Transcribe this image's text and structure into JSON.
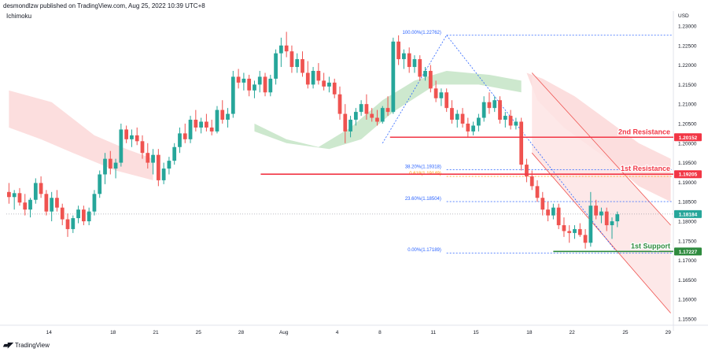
{
  "header": {
    "publisher": "desmondlzw published on TradingView.com, Aug 25, 2022 10:39 UTC+8"
  },
  "indicator": {
    "label": "Ichimoku"
  },
  "brand": {
    "label": "TradingView",
    "icon": "tradingview-logo-icon"
  },
  "colors": {
    "bull": "#26a69a",
    "bear": "#ef5350",
    "resistance": "#f23645",
    "support": "#2e8b3e",
    "fib": "#2962ff",
    "fib_gold": "#ff9800",
    "cloud_bull": "#c8e6c9",
    "cloud_bear": "#fcdada",
    "channel_fill": "#fde4e4"
  },
  "chart_data": {
    "type": "candlestick",
    "symbol_currency": "USD",
    "y_axis": {
      "ylim": [
        1.154,
        1.231
      ],
      "ticks": [
        "1.23000",
        "1.22500",
        "1.22000",
        "1.21500",
        "1.21000",
        "1.20500",
        "1.20000",
        "1.19500",
        "1.19000",
        "1.18500",
        "1.18000",
        "1.17500",
        "1.17000",
        "1.16500",
        "1.16000",
        "1.15500"
      ]
    },
    "x_axis": {
      "labels": [
        "14",
        "18",
        "21",
        "25",
        "28",
        "Aug",
        "4",
        "8",
        "11",
        "15",
        "18",
        "22",
        "25",
        "29"
      ]
    },
    "price_tags": [
      {
        "value": 1.20152,
        "label": "1.20152",
        "kind": "resistance"
      },
      {
        "value": 1.19205,
        "label": "1.19205",
        "kind": "resistance"
      },
      {
        "value": 1.18184,
        "label": "1.18184",
        "kind": "current"
      },
      {
        "value": 1.17227,
        "label": "1.17227",
        "kind": "support"
      }
    ],
    "levels": [
      {
        "name": "2nd Resistance",
        "value": 1.20152,
        "from_x": 28,
        "kind": "resistance"
      },
      {
        "name": "1st Resistance",
        "value": 1.19205,
        "from_x": 18.5,
        "kind": "resistance"
      },
      {
        "name": "1st Support",
        "value": 1.17227,
        "from_x": 40,
        "kind": "support"
      }
    ],
    "fibonacci": [
      {
        "label": "100.00%(1.22762)",
        "value": 1.22762
      },
      {
        "label": "38.20%(1.19318)",
        "value": 1.19318
      },
      {
        "label": "0.618(1.19149)",
        "value": 1.19149
      },
      {
        "label": "23.60%(1.18504)",
        "value": 1.18504
      },
      {
        "label": "0.00%(1.17189)",
        "value": 1.17189
      }
    ],
    "candles": [
      [
        1.1875,
        1.1898,
        1.1845,
        1.1862
      ],
      [
        1.1862,
        1.188,
        1.183,
        1.1872
      ],
      [
        1.1872,
        1.1885,
        1.184,
        1.1848
      ],
      [
        1.1848,
        1.187,
        1.1815,
        1.183
      ],
      [
        1.183,
        1.186,
        1.181,
        1.1855
      ],
      [
        1.1855,
        1.191,
        1.1845,
        1.1898
      ],
      [
        1.1898,
        1.1915,
        1.186,
        1.187
      ],
      [
        1.187,
        1.188,
        1.1815,
        1.1825
      ],
      [
        1.1825,
        1.1875,
        1.18,
        1.186
      ],
      [
        1.186,
        1.188,
        1.1825,
        1.1835
      ],
      [
        1.1835,
        1.1845,
        1.179,
        1.1805
      ],
      [
        1.1805,
        1.182,
        1.176,
        1.178
      ],
      [
        1.178,
        1.1815,
        1.177,
        1.1808
      ],
      [
        1.1808,
        1.184,
        1.1795,
        1.183
      ],
      [
        1.183,
        1.184,
        1.179,
        1.18
      ],
      [
        1.18,
        1.1835,
        1.179,
        1.1825
      ],
      [
        1.1825,
        1.188,
        1.1815,
        1.187
      ],
      [
        1.187,
        1.193,
        1.186,
        1.192
      ],
      [
        1.192,
        1.1975,
        1.1895,
        1.196
      ],
      [
        1.196,
        1.198,
        1.192,
        1.1935
      ],
      [
        1.1935,
        1.196,
        1.191,
        1.195
      ],
      [
        1.195,
        1.205,
        1.194,
        1.2035
      ],
      [
        1.2035,
        1.2045,
        1.2,
        1.201
      ],
      [
        1.201,
        1.2035,
        1.199,
        1.202
      ],
      [
        1.202,
        1.204,
        1.1995,
        1.2005
      ],
      [
        1.2005,
        1.202,
        1.196,
        1.1975
      ],
      [
        1.1975,
        1.2,
        1.1935,
        1.195
      ],
      [
        1.195,
        1.1985,
        1.192,
        1.197
      ],
      [
        1.197,
        1.1985,
        1.189,
        1.1905
      ],
      [
        1.1905,
        1.195,
        1.1895,
        1.1935
      ],
      [
        1.1935,
        1.1965,
        1.192,
        1.1955
      ],
      [
        1.1955,
        1.2,
        1.1945,
        1.199
      ],
      [
        1.199,
        1.204,
        1.1975,
        1.2025
      ],
      [
        1.2025,
        1.205,
        1.2,
        1.201
      ],
      [
        1.201,
        1.207,
        1.2,
        1.206
      ],
      [
        1.206,
        1.2085,
        1.203,
        1.204
      ],
      [
        1.204,
        1.2065,
        1.2025,
        1.2055
      ],
      [
        1.2055,
        1.2075,
        1.203,
        1.204
      ],
      [
        1.204,
        1.206,
        1.202,
        1.203
      ],
      [
        1.203,
        1.2095,
        1.2025,
        1.2085
      ],
      [
        1.2085,
        1.211,
        1.205,
        1.206
      ],
      [
        1.206,
        1.209,
        1.204,
        1.2075
      ],
      [
        1.2075,
        1.2185,
        1.2065,
        1.217
      ],
      [
        1.217,
        1.219,
        1.214,
        1.2155
      ],
      [
        1.2155,
        1.218,
        1.2135,
        1.2165
      ],
      [
        1.2165,
        1.2175,
        1.212,
        1.2135
      ],
      [
        1.2135,
        1.216,
        1.2115,
        1.215
      ],
      [
        1.215,
        1.2185,
        1.213,
        1.217
      ],
      [
        1.217,
        1.218,
        1.212,
        1.213
      ],
      [
        1.213,
        1.2175,
        1.212,
        1.2165
      ],
      [
        1.2165,
        1.224,
        1.215,
        1.223
      ],
      [
        1.223,
        1.227,
        1.2195,
        1.225
      ],
      [
        1.225,
        1.2285,
        1.222,
        1.2235
      ],
      [
        1.2235,
        1.225,
        1.218,
        1.2195
      ],
      [
        1.2195,
        1.223,
        1.218,
        1.2215
      ],
      [
        1.2215,
        1.2235,
        1.217,
        1.218
      ],
      [
        1.218,
        1.221,
        1.214,
        1.215
      ],
      [
        1.215,
        1.2195,
        1.214,
        1.2185
      ],
      [
        1.2185,
        1.2205,
        1.215,
        1.216
      ],
      [
        1.216,
        1.218,
        1.2135,
        1.2145
      ],
      [
        1.2145,
        1.217,
        1.213,
        1.2155
      ],
      [
        1.2155,
        1.2165,
        1.2115,
        1.2125
      ],
      [
        1.2125,
        1.2145,
        1.206,
        1.2075
      ],
      [
        1.2075,
        1.21,
        1.2,
        1.203
      ],
      [
        1.203,
        1.207,
        1.2015,
        1.206
      ],
      [
        1.206,
        1.209,
        1.2045,
        1.208
      ],
      [
        1.208,
        1.211,
        1.207,
        1.21
      ],
      [
        1.21,
        1.2125,
        1.206,
        1.2075
      ],
      [
        1.2075,
        1.209,
        1.2055,
        1.2065
      ],
      [
        1.2065,
        1.2085,
        1.2045,
        1.2055
      ],
      [
        1.2055,
        1.2095,
        1.205,
        1.209
      ],
      [
        1.209,
        1.212,
        1.207,
        1.208
      ],
      [
        1.208,
        1.227,
        1.2075,
        1.226
      ],
      [
        1.226,
        1.2276,
        1.22,
        1.2215
      ],
      [
        1.2215,
        1.224,
        1.219,
        1.223
      ],
      [
        1.223,
        1.2245,
        1.218,
        1.2195
      ],
      [
        1.2195,
        1.2225,
        1.218,
        1.2215
      ],
      [
        1.2215,
        1.2225,
        1.216,
        1.217
      ],
      [
        1.217,
        1.2195,
        1.216,
        1.2185
      ],
      [
        1.2185,
        1.22,
        1.213,
        1.214
      ],
      [
        1.214,
        1.216,
        1.2105,
        1.2115
      ],
      [
        1.2115,
        1.214,
        1.2095,
        1.213
      ],
      [
        1.213,
        1.214,
        1.208,
        1.209
      ],
      [
        1.209,
        1.211,
        1.205,
        1.206
      ],
      [
        1.206,
        1.2085,
        1.204,
        1.2075
      ],
      [
        1.2075,
        1.209,
        1.204,
        1.205
      ],
      [
        1.205,
        1.2065,
        1.2015,
        1.203
      ],
      [
        1.203,
        1.2055,
        1.202,
        1.2045
      ],
      [
        1.2045,
        1.2075,
        1.203,
        1.2065
      ],
      [
        1.2065,
        1.212,
        1.2055,
        1.2105
      ],
      [
        1.2105,
        1.213,
        1.2075,
        1.209
      ],
      [
        1.209,
        1.212,
        1.208,
        1.211
      ],
      [
        1.211,
        1.212,
        1.205,
        1.206
      ],
      [
        1.206,
        1.208,
        1.204,
        1.207
      ],
      [
        1.207,
        1.2085,
        1.2035,
        1.2045
      ],
      [
        1.2045,
        1.2065,
        1.2035,
        1.2055
      ],
      [
        1.2055,
        1.2065,
        1.193,
        1.1945
      ],
      [
        1.1945,
        1.196,
        1.19,
        1.1915
      ],
      [
        1.1915,
        1.193,
        1.188,
        1.189
      ],
      [
        1.189,
        1.1905,
        1.185,
        1.186
      ],
      [
        1.186,
        1.1875,
        1.1815,
        1.183
      ],
      [
        1.183,
        1.185,
        1.18,
        1.1815
      ],
      [
        1.1815,
        1.1845,
        1.1805,
        1.1835
      ],
      [
        1.1835,
        1.1845,
        1.178,
        1.179
      ],
      [
        1.179,
        1.181,
        1.176,
        1.1775
      ],
      [
        1.1775,
        1.179,
        1.1745,
        1.177
      ],
      [
        1.177,
        1.179,
        1.1755,
        1.178
      ],
      [
        1.178,
        1.1795,
        1.176,
        1.1765
      ],
      [
        1.1765,
        1.178,
        1.173,
        1.1745
      ],
      [
        1.1745,
        1.1875,
        1.1735,
        1.184
      ],
      [
        1.184,
        1.1855,
        1.1805,
        1.1815
      ],
      [
        1.1815,
        1.1835,
        1.1795,
        1.1825
      ],
      [
        1.1825,
        1.1835,
        1.1775,
        1.179
      ],
      [
        1.179,
        1.181,
        1.1755,
        1.18
      ],
      [
        1.18,
        1.1825,
        1.1785,
        1.1818
      ]
    ],
    "annotations": [
      "2nd Resistance",
      "1st Resistance",
      "1st Support"
    ]
  }
}
